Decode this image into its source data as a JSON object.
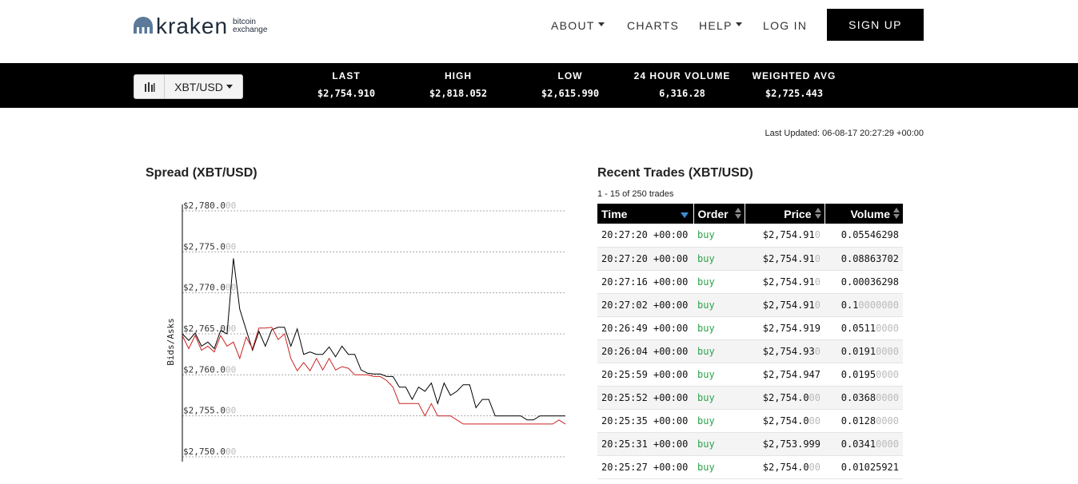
{
  "brand": {
    "word": "kraken",
    "sub1": "bitcoin",
    "sub2": "exchange"
  },
  "nav": {
    "about": "ABOUT",
    "charts": "CHARTS",
    "help": "HELP",
    "login": "LOG IN",
    "signup": "SIGN UP"
  },
  "ticker": {
    "pair": "XBT/USD",
    "stats": [
      {
        "label": "LAST",
        "value": "$2,754.910"
      },
      {
        "label": "HIGH",
        "value": "$2,818.052"
      },
      {
        "label": "LOW",
        "value": "$2,615.990"
      },
      {
        "label": "24 HOUR VOLUME",
        "value": "6,316.28"
      },
      {
        "label": "WEIGHTED AVG",
        "value": "$2,725.443"
      }
    ]
  },
  "last_updated": "Last Updated: 06-08-17 20:27:29 +00:00",
  "spread": {
    "title": "Spread (XBT/USD)",
    "ylabel": "Bids/Asks"
  },
  "chart_data": {
    "type": "line",
    "title": "Spread (XBT/USD)",
    "ylabel": "Bids/Asks",
    "ylim": [
      2750,
      2780
    ],
    "yticks": [
      "$2,780.000",
      "$2,775.000",
      "$2,770.000",
      "$2,765.000",
      "$2,760.000",
      "$2,755.000",
      "$2,750.000"
    ],
    "ytick_values": [
      2780,
      2775,
      2770,
      2765,
      2760,
      2755,
      2750
    ],
    "series": [
      {
        "color": "#000000",
        "values": [
          2765.0,
          2764.2,
          2765.1,
          2763.5,
          2764.0,
          2763.2,
          2765.4,
          2765.0,
          2774.2,
          2768.0,
          2765.5,
          2763.0,
          2765.3,
          2763.5,
          2765.5,
          2765.8,
          2765.8,
          2763.5,
          2765.6,
          2762.5,
          2762.8,
          2762.5,
          2762.5,
          2763.4,
          2762.2,
          2763.5,
          2762.5,
          2762.5,
          2760.6,
          2760.2,
          2760.1,
          2760.1,
          2759.8,
          2759.8,
          2758.5,
          2758.5,
          2757.0,
          2758.5,
          2758.0,
          2759.0,
          2756.5,
          2759.0,
          2757.5,
          2758.0,
          2758.8,
          2758.8,
          2756.0,
          2757.0,
          2757.0,
          2755.0,
          2755.0,
          2755.0,
          2755.0,
          2755.0,
          2754.5,
          2754.5,
          2755.0,
          2755.0,
          2755.0,
          2755.0,
          2755.0
        ]
      },
      {
        "color": "#cc2222",
        "values": [
          2764.8,
          2763.2,
          2764.8,
          2763.0,
          2763.5,
          2762.8,
          2764.8,
          2763.5,
          2764.0,
          2762.0,
          2764.6,
          2763.2,
          2765.7,
          2765.7,
          2765.8,
          2764.3,
          2765.0,
          2762.0,
          2760.5,
          2761.5,
          2760.5,
          2762.0,
          2760.6,
          2762.0,
          2760.6,
          2761.0,
          2760.8,
          2760.0,
          2760.0,
          2760.0,
          2759.8,
          2759.8,
          2759.3,
          2758.5,
          2756.5,
          2756.5,
          2756.5,
          2756.5,
          2755.0,
          2756.5,
          2755.0,
          2755.0,
          2755.0,
          2754.5,
          2754.0,
          2754.0,
          2754.0,
          2754.0,
          2754.0,
          2754.0,
          2754.0,
          2754.0,
          2754.0,
          2754.0,
          2754.0,
          2754.0,
          2754.0,
          2754.0,
          2754.0,
          2754.5,
          2754.0
        ]
      }
    ]
  },
  "trades": {
    "title": "Recent Trades (XBT/USD)",
    "count": "1 - 15 of 250 trades",
    "headers": {
      "time": "Time",
      "order": "Order",
      "price": "Price",
      "volume": "Volume"
    },
    "rows": [
      {
        "time": "20:27:20 +00:00",
        "order": "buy",
        "price": "$2,754.91",
        "price_dim": "0",
        "volume": "0.05546298",
        "volume_dim": ""
      },
      {
        "time": "20:27:20 +00:00",
        "order": "buy",
        "price": "$2,754.91",
        "price_dim": "0",
        "volume": "0.08863702",
        "volume_dim": ""
      },
      {
        "time": "20:27:16 +00:00",
        "order": "buy",
        "price": "$2,754.91",
        "price_dim": "0",
        "volume": "0.00036298",
        "volume_dim": ""
      },
      {
        "time": "20:27:02 +00:00",
        "order": "buy",
        "price": "$2,754.91",
        "price_dim": "0",
        "volume": "0.1",
        "volume_dim": "0000000"
      },
      {
        "time": "20:26:49 +00:00",
        "order": "buy",
        "price": "$2,754.919",
        "price_dim": "",
        "volume": "0.0511",
        "volume_dim": "0000"
      },
      {
        "time": "20:26:04 +00:00",
        "order": "buy",
        "price": "$2,754.93",
        "price_dim": "0",
        "volume": "0.0191",
        "volume_dim": "0000"
      },
      {
        "time": "20:25:59 +00:00",
        "order": "buy",
        "price": "$2,754.947",
        "price_dim": "",
        "volume": "0.0195",
        "volume_dim": "0000"
      },
      {
        "time": "20:25:52 +00:00",
        "order": "buy",
        "price": "$2,754.0",
        "price_dim": "00",
        "volume": "0.0368",
        "volume_dim": "0000"
      },
      {
        "time": "20:25:35 +00:00",
        "order": "buy",
        "price": "$2,754.0",
        "price_dim": "00",
        "volume": "0.0128",
        "volume_dim": "0000"
      },
      {
        "time": "20:25:31 +00:00",
        "order": "buy",
        "price": "$2,753.999",
        "price_dim": "",
        "volume": "0.0341",
        "volume_dim": "0000"
      },
      {
        "time": "20:25:27 +00:00",
        "order": "buy",
        "price": "$2,754.0",
        "price_dim": "00",
        "volume": "0.01025921",
        "volume_dim": ""
      }
    ]
  }
}
